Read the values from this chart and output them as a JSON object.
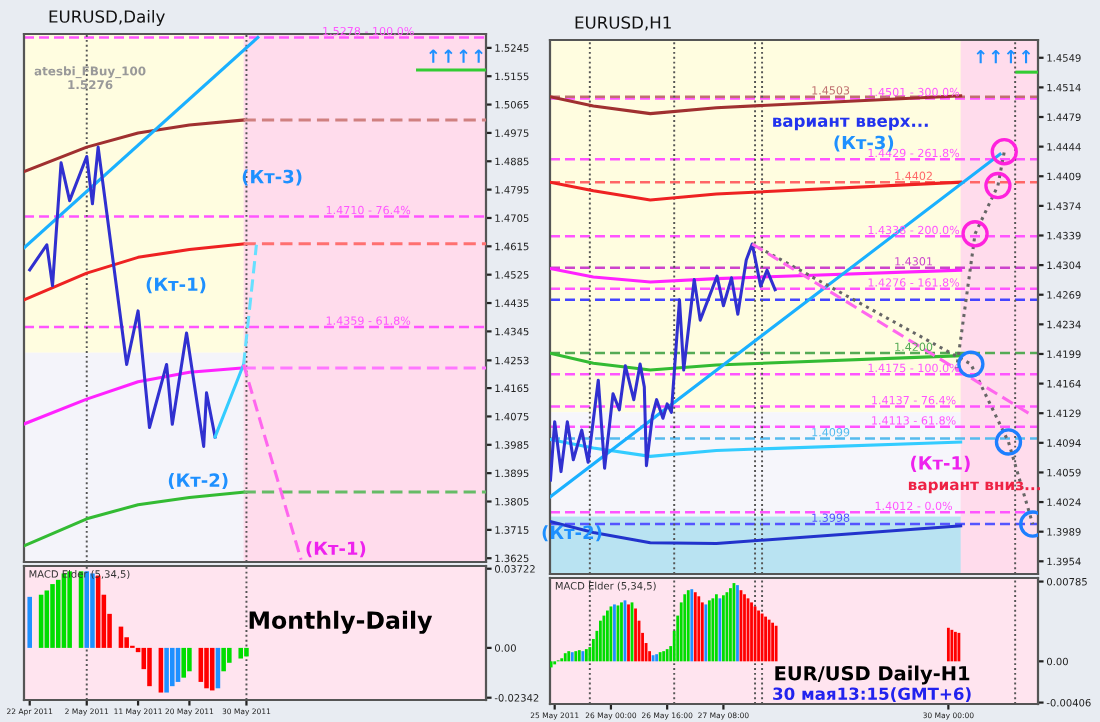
{
  "chart_data": [
    {
      "type": "line",
      "title": "EURUSD,Daily",
      "xlim": [
        "2011-04-21",
        "2011-07-11"
      ],
      "ylim": [
        1.3613,
        1.5289
      ],
      "tick_labels": "y",
      "yticks": [
        1.5245,
        1.5155,
        1.5065,
        1.4975,
        1.4885,
        1.4795,
        1.4705,
        1.4615,
        1.4525,
        1.4435,
        1.4345,
        1.4253,
        1.4165,
        1.4075,
        1.3985,
        1.3895,
        1.3805,
        1.3715,
        1.3625
      ],
      "bands": [
        {
          "axis": "y",
          "from": 1.4277,
          "to": 1.5289,
          "color": "#fffde0"
        },
        {
          "axis": "y",
          "from": 1.3613,
          "to": 1.4277,
          "color": "#f4f4fa"
        },
        {
          "axis": "x",
          "from": "2011-05-29T12:00",
          "to": "2011-07-11",
          "color": "#ffdcec"
        }
      ],
      "ref_lines": [
        {
          "axis": "y",
          "value": 1.5278,
          "label": "1.5278 - 100.0%",
          "color": "#ff55ff",
          "line_style": "dashed"
        },
        {
          "axis": "y",
          "value": 1.471,
          "label": "1.4710 - 76.4%",
          "color": "#ff55ff",
          "line_style": "dashed"
        },
        {
          "axis": "y",
          "value": 1.4359,
          "label": "1.4359 - 61.8%",
          "color": "#ff55ff",
          "line_style": "dashed"
        },
        {
          "axis": "x",
          "value": "2011-05-02",
          "color": "#555555",
          "line_style": "dotted"
        },
        {
          "axis": "x",
          "value": "2011-05-30",
          "color": "#555555",
          "line_style": "dotted"
        }
      ],
      "series": [
        {
          "color": "#a03030",
          "x": [
            "2011-04-21",
            "2011-05-02",
            "2011-05-11",
            "2011-05-20",
            "2011-05-29T12:00"
          ],
          "values": [
            1.4852,
            1.493,
            1.4975,
            1.5,
            1.5016
          ]
        },
        {
          "color": "#d08080",
          "x": [
            "2011-05-29T12:00",
            "2011-07-11"
          ],
          "values": [
            1.5016,
            1.5016
          ],
          "line_style": "dashed"
        },
        {
          "color": "#ee2222",
          "x": [
            "2011-04-21",
            "2011-05-02",
            "2011-05-11",
            "2011-05-20",
            "2011-05-29T12:00"
          ],
          "values": [
            1.4445,
            1.453,
            1.458,
            1.4605,
            1.4623
          ]
        },
        {
          "color": "#ff7070",
          "x": [
            "2011-05-29T12:00",
            "2011-07-11"
          ],
          "values": [
            1.4623,
            1.4623
          ],
          "line_style": "dashed"
        },
        {
          "color": "#ff22ff",
          "x": [
            "2011-04-21",
            "2011-05-02",
            "2011-05-11",
            "2011-05-20",
            "2011-05-29T12:00"
          ],
          "values": [
            1.4051,
            1.413,
            1.4185,
            1.4215,
            1.4229
          ]
        },
        {
          "color": "#ff77ff",
          "x": [
            "2011-05-29T12:00",
            "2011-07-11"
          ],
          "values": [
            1.4229,
            1.4229
          ],
          "line_style": "dashed"
        },
        {
          "color": "#33bb33",
          "x": [
            "2011-04-21",
            "2011-05-02",
            "2011-05-11",
            "2011-05-20",
            "2011-05-29T12:00"
          ],
          "values": [
            1.3664,
            1.375,
            1.3795,
            1.3818,
            1.3835
          ]
        },
        {
          "color": "#66bb66",
          "x": [
            "2011-05-29T12:00",
            "2011-07-11"
          ],
          "values": [
            1.3835,
            1.3835
          ],
          "line_style": "dashed"
        },
        {
          "color": "#33cc33",
          "x": [
            "2011-06-29",
            "2011-07-11"
          ],
          "values": [
            1.5175,
            1.5175
          ]
        },
        {
          "color": "#1ab0ff",
          "x": [
            "2011-04-21",
            "2011-06-01"
          ],
          "values": [
            1.461,
            1.5278
          ]
        },
        {
          "color": "#3030d0",
          "x": [
            "2011-04-22",
            "2011-04-25",
            "2011-04-26",
            "2011-04-27T12:00",
            "2011-04-29",
            "2011-05-02",
            "2011-05-03",
            "2011-05-04",
            "2011-05-09",
            "2011-05-11",
            "2011-05-13",
            "2011-05-16",
            "2011-05-17",
            "2011-05-19T12:00",
            "2011-05-22T12:00",
            "2011-05-23",
            "2011-05-24T12:00"
          ],
          "values": [
            1.454,
            1.462,
            1.449,
            1.488,
            1.476,
            1.49,
            1.475,
            1.493,
            1.424,
            1.441,
            1.404,
            1.424,
            1.405,
            1.434,
            1.398,
            1.415,
            1.401
          ]
        },
        {
          "color": "#33ccff",
          "x": [
            "2011-05-24T12:00",
            "2011-05-29T12:00"
          ],
          "values": [
            1.401,
            1.424
          ]
        },
        {
          "color": "#66e0ff",
          "x": [
            "2011-05-29T12:00",
            "2011-05-31T18:00"
          ],
          "values": [
            1.424,
            1.462
          ],
          "line_style": "dashed"
        },
        {
          "color": "#ff66ee",
          "x": [
            "2011-05-29T12:00",
            "2011-06-08T14:00"
          ],
          "values": [
            1.424,
            1.362
          ],
          "line_style": "dashed"
        }
      ],
      "annotations": [
        "↑↑↑↑",
        "atesbi_FBuy_100\n1.5276",
        "(Кт-3)",
        "(Кт-1)",
        "(Кт-2)",
        "(Кт-1)"
      ]
    },
    {
      "type": "bar",
      "title": "MACD Elder (5,34,5)",
      "xlim": [
        "2011-04-21",
        "2011-07-11"
      ],
      "ylim": [
        -0.0245,
        0.0385
      ],
      "yticks": [
        0.03722,
        {
          "value": 0,
          "label": "0.00"
        },
        -0.02342
      ],
      "xticks": [
        {
          "value": "2011-04-22",
          "label": "22 Apr 2011"
        },
        {
          "value": "2011-05-02",
          "label": "2 May 2011"
        },
        {
          "value": "2011-05-11",
          "label": "11 May 2011"
        },
        {
          "value": "2011-05-20",
          "label": "20 May 2011"
        },
        {
          "value": "2011-05-30",
          "label": "30 May 2011"
        }
      ],
      "bands": [
        {
          "axis": "x",
          "from": "2011-04-21",
          "to": "2011-07-11",
          "color": "#ffe4ef"
        }
      ],
      "ref_lines": [
        {
          "axis": "x",
          "value": "2011-05-02",
          "color": "#555555",
          "line_style": "dotted"
        },
        {
          "axis": "x",
          "value": "2011-05-30",
          "color": "#555555",
          "line_style": "dotted"
        }
      ],
      "series": [
        {
          "x": [
            "2011-04-22",
            "2011-04-24",
            "2011-04-25",
            "2011-04-26",
            "2011-04-27",
            "2011-04-28",
            "2011-04-29",
            "2011-05-01",
            "2011-05-02",
            "2011-05-03",
            "2011-05-04",
            "2011-05-05",
            "2011-05-06",
            "2011-05-08",
            "2011-05-09",
            "2011-05-10",
            "2011-05-11",
            "2011-05-12",
            "2011-05-13",
            "2011-05-15",
            "2011-05-16",
            "2011-05-17",
            "2011-05-18",
            "2011-05-19",
            "2011-05-20",
            "2011-05-22",
            "2011-05-23",
            "2011-05-24",
            "2011-05-25",
            "2011-05-26",
            "2011-05-27",
            "2011-05-29",
            "2011-05-30"
          ],
          "values": [
            0.024,
            0.025,
            0.027,
            0.03,
            0.032,
            0.035,
            0.036,
            0.036,
            0.036,
            0.035,
            0.034,
            0.025,
            0.016,
            0.01,
            0.005,
            0.001,
            -0.002,
            -0.01,
            -0.018,
            -0.021,
            -0.021,
            -0.018,
            -0.016,
            -0.014,
            -0.011,
            -0.016,
            -0.019,
            -0.02,
            -0.019,
            -0.011,
            -0.007,
            -0.005,
            -0.004
          ],
          "colors": [
            "#1e90ff",
            "#00dd00",
            "#00dd00",
            "#00dd00",
            "#00dd00",
            "#00dd00",
            "#00dd00",
            "#00dd00",
            "#1e90ff",
            "#1e90ff",
            "#ff0000",
            "#ff0000",
            "#ff0000",
            "#ff0000",
            "#ff0000",
            "#ff0000",
            "#ff0000",
            "#ff0000",
            "#ff0000",
            "#ff0000",
            "#1e90ff",
            "#1e90ff",
            "#1e90ff",
            "#00dd00",
            "#00dd00",
            "#ff0000",
            "#ff0000",
            "#ff0000",
            "#1e90ff",
            "#00dd00",
            "#00dd00",
            "#00dd00",
            "#00dd00"
          ]
        }
      ],
      "annotations": [
        "Monthly-Daily"
      ]
    },
    {
      "type": "line",
      "title": "EURUSD,H1",
      "xlim": [
        "2011-05-25T06:40",
        "2011-05-31T01:30"
      ],
      "ylim": [
        1.3939,
        1.457
      ],
      "tick_labels": "y",
      "yticks": [
        1.4549,
        1.4514,
        1.4479,
        1.4444,
        1.4409,
        1.4374,
        1.4339,
        1.4304,
        1.4269,
        1.4234,
        1.4199,
        1.4164,
        1.4129,
        1.4094,
        1.4059,
        1.4024,
        1.3989,
        1.3954
      ],
      "bands": [
        {
          "axis": "y",
          "from": 1.413,
          "to": 1.457,
          "color": "#fffde0"
        },
        {
          "axis": "y",
          "from": 1.4007,
          "to": 1.413,
          "color": "#f6f6fb"
        },
        {
          "axis": "y",
          "from": 1.3939,
          "to": 1.4007,
          "color": "#b9e3f2"
        },
        {
          "axis": "x",
          "from": "2011-05-30T03:30",
          "to": "2011-05-31T01:30",
          "color": "#ffdcec"
        }
      ],
      "ref_lines": [
        {
          "axis": "y",
          "value": 1.4501,
          "label": "1.4501 - 300.0%",
          "color": "#ff55ff",
          "line_style": "dashed"
        },
        {
          "axis": "y",
          "value": 1.4429,
          "label": "1.4429 - 261.8%",
          "color": "#ff55ff",
          "line_style": "dashed"
        },
        {
          "axis": "y",
          "value": 1.4338,
          "label": "1.4338 - 200.0%",
          "color": "#ff55ff",
          "line_style": "dashed"
        },
        {
          "axis": "y",
          "value": 1.4276,
          "label": "1.4276 - 161.8%",
          "color": "#ff55ff",
          "line_style": "dashed"
        },
        {
          "axis": "y",
          "value": 1.4175,
          "label": "1.4175 - 100.0%",
          "color": "#ff55ff",
          "line_style": "dashed"
        },
        {
          "axis": "y",
          "value": 1.4137,
          "label": "1.4137 - 76.4%",
          "color": "#ff55ff",
          "line_style": "dashed"
        },
        {
          "axis": "y",
          "value": 1.4113,
          "label": "1.4113 - 61.8%",
          "color": "#ff55ff",
          "line_style": "dashed"
        },
        {
          "axis": "y",
          "value": 1.4012,
          "label": "1.4012 - 0.0%",
          "color": "#ff55ff",
          "line_style": "dashed"
        },
        {
          "axis": "y",
          "value": 1.4503,
          "label": "1.4503",
          "color": "#c07070",
          "line_style": "dashed"
        },
        {
          "axis": "y",
          "value": 1.4402,
          "label": "1.4402",
          "color": "#ff6666",
          "line_style": "dashed"
        },
        {
          "axis": "y",
          "value": 1.4301,
          "label": "1.4301",
          "color": "#cc44cc",
          "line_style": "dashed"
        },
        {
          "axis": "y",
          "value": 1.42,
          "label": "1.4200",
          "color": "#55aa55",
          "line_style": "dashed"
        },
        {
          "axis": "y",
          "value": 1.4099,
          "label": "1.4099",
          "color": "#55bbee",
          "line_style": "dashed"
        },
        {
          "axis": "y",
          "value": 1.3998,
          "label": "1.3998",
          "color": "#5555ff",
          "line_style": "dashed"
        },
        {
          "axis": "y",
          "value": 1.4263,
          "color": "#4444ff",
          "line_style": "dashed"
        },
        {
          "axis": "x",
          "value": "2011-05-25T18:00",
          "color": "#555555",
          "line_style": "dotted"
        },
        {
          "axis": "x",
          "value": "2011-05-26T18:00",
          "color": "#555555",
          "line_style": "dotted"
        },
        {
          "axis": "x",
          "value": "2011-05-27T17:00",
          "color": "#555555",
          "line_style": "dotted"
        },
        {
          "axis": "x",
          "value": "2011-05-27T19:00",
          "color": "#555555",
          "line_style": "dotted"
        },
        {
          "axis": "x",
          "value": "2011-05-30T19:00",
          "color": "#555555",
          "line_style": "dotted"
        }
      ],
      "series": [
        {
          "color": "#a03030",
          "x": [
            "2011-05-25T06:40",
            "2011-05-25T19:00",
            "2011-05-26T11:12",
            "2011-05-27T06:00",
            "2011-05-30T03:30"
          ],
          "values": [
            1.4503,
            1.4492,
            1.4483,
            1.449,
            1.4504
          ]
        },
        {
          "color": "#ee2222",
          "x": [
            "2011-05-25T06:40",
            "2011-05-25T19:00",
            "2011-05-26T11:12",
            "2011-05-27T06:00",
            "2011-05-30T03:30"
          ],
          "values": [
            1.4402,
            1.4392,
            1.4381,
            1.4388,
            1.4402
          ]
        },
        {
          "color": "#ff22ff",
          "x": [
            "2011-05-25T06:40",
            "2011-05-25T19:00",
            "2011-05-26T11:12",
            "2011-05-27T06:00",
            "2011-05-30T03:30"
          ],
          "values": [
            1.43,
            1.429,
            1.4284,
            1.4288,
            1.4298
          ]
        },
        {
          "color": "#33bb33",
          "x": [
            "2011-05-25T06:40",
            "2011-05-25T19:00",
            "2011-05-26T11:12",
            "2011-05-27T06:00",
            "2011-05-30T03:30"
          ],
          "values": [
            1.42,
            1.4188,
            1.418,
            1.4186,
            1.4197
          ]
        },
        {
          "color": "#33ccff",
          "x": [
            "2011-05-25T06:40",
            "2011-05-25T19:00",
            "2011-05-26T11:12",
            "2011-05-27T06:00",
            "2011-05-30T03:30"
          ],
          "values": [
            1.4098,
            1.4088,
            1.4078,
            1.4085,
            1.4095
          ]
        },
        {
          "color": "#2233cc",
          "x": [
            "2011-05-25T06:40",
            "2011-05-25T19:00",
            "2011-05-26T11:12",
            "2011-05-27T06:00",
            "2011-05-30T03:30"
          ],
          "values": [
            1.4001,
            1.3988,
            1.3976,
            1.3975,
            1.3996
          ]
        },
        {
          "color": "#33cc33",
          "x": [
            "2011-05-30T19:30",
            "2011-05-31T01:30"
          ],
          "values": [
            1.4532,
            1.4532
          ]
        },
        {
          "color": "#1ab0ff",
          "x": [
            "2011-05-25T06:40",
            "2011-05-30T14:42"
          ],
          "values": [
            1.403,
            1.4435
          ]
        },
        {
          "color": "#3030d0",
          "x": [
            "2011-05-25T06:48",
            "2011-05-25T08:00",
            "2011-05-25T09:48",
            "2011-05-25T11:36",
            "2011-05-25T13:18",
            "2011-05-25T15:42",
            "2011-05-25T17:30",
            "2011-05-25T20:24",
            "2011-05-25T22:12",
            "2011-05-26T00:36",
            "2011-05-26T02:24",
            "2011-05-26T04:06",
            "2011-05-26T06:30",
            "2011-05-26T08:18",
            "2011-05-26T09:30",
            "2011-05-26T10:06",
            "2011-05-26T11:48",
            "2011-05-26T13:00",
            "2011-05-26T14:48",
            "2011-05-26T16:00",
            "2011-05-26T17:12",
            "2011-05-26T19:30",
            "2011-05-26T20:42",
            "2011-05-26T23:42",
            "2011-05-27T01:24",
            "2011-05-27T06:12",
            "2011-05-27T08:00",
            "2011-05-27T10:18",
            "2011-05-27T12:06",
            "2011-05-27T14:30",
            "2011-05-27T16:12",
            "2011-05-27T18:36",
            "2011-05-27T20:24",
            "2011-05-27T22:42"
          ],
          "values": [
            1.405,
            1.4119,
            1.406,
            1.4119,
            1.4074,
            1.4109,
            1.4071,
            1.4168,
            1.4064,
            1.4152,
            1.4133,
            1.4185,
            1.4145,
            1.4187,
            1.416,
            1.4067,
            1.4126,
            1.4145,
            1.4123,
            1.414,
            1.413,
            1.4263,
            1.418,
            1.4287,
            1.4239,
            1.4291,
            1.4256,
            1.4289,
            1.4246,
            1.431,
            1.4329,
            1.4279,
            1.4298,
            1.4275
          ]
        },
        {
          "color": "#666666",
          "x": [
            "2011-05-27T16:12",
            "2011-05-30T06:24",
            "2011-05-30T17:06",
            "2011-05-31T00:00"
          ],
          "values": [
            1.4329,
            1.4187,
            1.4095,
            1.3998
          ],
          "line_style": "dotted"
        },
        {
          "color": "#666666",
          "x": [
            "2011-05-30T02:18",
            "2011-05-30T07:36",
            "2011-05-30T14:06",
            "2011-05-30T15:54"
          ],
          "values": [
            1.418,
            1.4341,
            1.4398,
            1.4438
          ],
          "line_style": "dotted"
        },
        {
          "color": "#ff66ee",
          "x": [
            "2011-05-27T16:12",
            "2011-05-31T00:00"
          ],
          "values": [
            1.4329,
            1.4126
          ],
          "line_style": "dashed"
        },
        {
          "type": "scatter",
          "color": "#ff22dd",
          "x": [
            "2011-05-30T15:54",
            "2011-05-30T14:06",
            "2011-05-30T07:36"
          ],
          "values": [
            1.4438,
            1.4398,
            1.4341
          ]
        },
        {
          "type": "scatter",
          "color": "#1e7fff",
          "x": [
            "2011-05-30T06:24",
            "2011-05-30T17:06",
            "2011-05-31T00:00"
          ],
          "values": [
            1.4187,
            1.4095,
            1.3998
          ]
        }
      ],
      "annotations": [
        "↑↑↑↑",
        "вариант вверх...",
        "(Кт-3)",
        "(Кт-1)",
        "вариант вниз...",
        "(Кт-2)"
      ]
    },
    {
      "type": "bar",
      "title": "MACD Elder (5,34,5)",
      "xlim": [
        "2011-05-25T06:40",
        "2011-05-31T01:30"
      ],
      "ylim": [
        -0.0042,
        0.0082
      ],
      "xticks": [
        {
          "value": "2011-05-25T08:00",
          "label": "25 May 2011"
        },
        {
          "value": "2011-05-26T00:00",
          "label": "26 May 00:00"
        },
        {
          "value": "2011-05-26T16:00",
          "label": "26 May 16:00"
        },
        {
          "value": "2011-05-27T08:00",
          "label": "27 May 08:00"
        },
        {
          "value": "2011-05-30T00:00",
          "label": "30 May 00:00"
        }
      ],
      "yticks": [
        0.00785,
        {
          "value": 0,
          "label": "0.00"
        },
        -0.00406
      ],
      "bands": [
        {
          "axis": "x",
          "from": "2011-05-25T06:40",
          "to": "2011-05-31T01:30",
          "color": "#ffe4ef"
        }
      ],
      "ref_lines": [
        {
          "axis": "x",
          "value": "2011-05-25T18:00",
          "color": "#555555",
          "line_style": "dotted"
        },
        {
          "axis": "x",
          "value": "2011-05-26T18:00",
          "color": "#555555",
          "line_style": "dotted"
        },
        {
          "axis": "x",
          "value": "2011-05-27T17:00",
          "color": "#555555",
          "line_style": "dotted"
        },
        {
          "axis": "x",
          "value": "2011-05-27T19:00",
          "color": "#555555",
          "line_style": "dotted"
        },
        {
          "axis": "x",
          "value": "2011-05-30T19:00",
          "color": "#555555",
          "line_style": "dotted"
        }
      ],
      "series": [
        {
          "x": [
            "2011-05-25T07:00",
            "2011-05-25T08:00",
            "2011-05-25T09:00",
            "2011-05-25T10:00",
            "2011-05-25T11:00",
            "2011-05-25T12:00",
            "2011-05-25T13:00",
            "2011-05-25T14:00",
            "2011-05-25T15:00",
            "2011-05-25T16:00",
            "2011-05-25T17:00",
            "2011-05-25T18:00",
            "2011-05-25T19:00",
            "2011-05-25T20:00",
            "2011-05-25T21:00",
            "2011-05-25T22:00",
            "2011-05-25T23:00",
            "2011-05-26T00:00",
            "2011-05-26T01:00",
            "2011-05-26T02:00",
            "2011-05-26T03:00",
            "2011-05-26T04:00",
            "2011-05-26T05:00",
            "2011-05-26T06:00",
            "2011-05-26T07:00",
            "2011-05-26T08:00",
            "2011-05-26T09:00",
            "2011-05-26T10:00",
            "2011-05-26T11:00",
            "2011-05-26T12:00",
            "2011-05-26T13:00",
            "2011-05-26T14:00",
            "2011-05-26T15:00",
            "2011-05-26T16:00",
            "2011-05-26T17:00",
            "2011-05-26T18:00",
            "2011-05-26T19:00",
            "2011-05-26T20:00",
            "2011-05-26T21:00",
            "2011-05-26T22:00",
            "2011-05-26T23:00",
            "2011-05-27T00:00",
            "2011-05-27T01:00",
            "2011-05-27T02:00",
            "2011-05-27T03:00",
            "2011-05-27T04:00",
            "2011-05-27T05:00",
            "2011-05-27T06:00",
            "2011-05-27T07:00",
            "2011-05-27T08:00",
            "2011-05-27T09:00",
            "2011-05-27T10:00",
            "2011-05-27T11:00",
            "2011-05-27T12:00",
            "2011-05-27T13:00",
            "2011-05-27T14:00",
            "2011-05-27T15:00",
            "2011-05-27T16:00",
            "2011-05-27T17:00",
            "2011-05-27T18:00",
            "2011-05-27T19:00",
            "2011-05-27T20:00",
            "2011-05-27T21:00",
            "2011-05-27T22:00",
            "2011-05-27T23:00",
            "2011-05-30T00:00",
            "2011-05-30T01:00",
            "2011-05-30T02:00",
            "2011-05-30T03:00"
          ],
          "values": [
            -0.0006,
            -0.0003,
            0.0001,
            0.0003,
            0.0008,
            0.001,
            0.0009,
            0.001,
            0.0011,
            0.001,
            0.0012,
            0.0014,
            0.0022,
            0.003,
            0.004,
            0.0045,
            0.005,
            0.0054,
            0.0056,
            0.0055,
            0.0058,
            0.006,
            0.0056,
            0.0058,
            0.0052,
            0.004,
            0.0028,
            0.0018,
            0.001,
            0.0006,
            0.0007,
            0.0009,
            0.001,
            0.0012,
            0.0015,
            0.003,
            0.0045,
            0.0058,
            0.0066,
            0.007,
            0.0071,
            0.0068,
            0.0064,
            0.0058,
            0.0056,
            0.006,
            0.0062,
            0.0066,
            0.0062,
            0.0065,
            0.0068,
            0.0072,
            0.0077,
            0.0075,
            0.007,
            0.0066,
            0.0062,
            0.0058,
            0.0054,
            0.005,
            0.0047,
            0.0044,
            0.0041,
            0.0038,
            0.0035,
            0.0033,
            0.0031,
            0.0029,
            0.0028
          ],
          "colors": [
            "#00dd00",
            "#00dd00",
            "#00dd00",
            "#00dd00",
            "#00dd00",
            "#00dd00",
            "#1e90ff",
            "#00dd00",
            "#00dd00",
            "#1e90ff",
            "#00dd00",
            "#00dd00",
            "#00dd00",
            "#00dd00",
            "#00dd00",
            "#00dd00",
            "#00dd00",
            "#00dd00",
            "#1e90ff",
            "#00dd00",
            "#00dd00",
            "#1e90ff",
            "#ff0000",
            "#00dd00",
            "#ff0000",
            "#ff0000",
            "#ff0000",
            "#ff0000",
            "#ff0000",
            "#1e90ff",
            "#1e90ff",
            "#00dd00",
            "#00dd00",
            "#00dd00",
            "#00dd00",
            "#00dd00",
            "#00dd00",
            "#00dd00",
            "#00dd00",
            "#00dd00",
            "#1e90ff",
            "#ff0000",
            "#ff0000",
            "#ff0000",
            "#1e90ff",
            "#00dd00",
            "#00dd00",
            "#00dd00",
            "#1e90ff",
            "#00dd00",
            "#00dd00",
            "#00dd00",
            "#00dd00",
            "#1e90ff",
            "#ff0000",
            "#ff0000",
            "#ff0000",
            "#ff0000",
            "#ff0000",
            "#ff0000",
            "#ff0000",
            "#ff0000",
            "#ff0000",
            "#ff0000",
            "#ff0000",
            "#ff0000",
            "#ff0000",
            "#ff0000",
            "#ff0000"
          ]
        }
      ],
      "annotations": [
        "EUR/USD Daily-H1",
        "30 мая13:15(GMT+6)"
      ]
    }
  ]
}
